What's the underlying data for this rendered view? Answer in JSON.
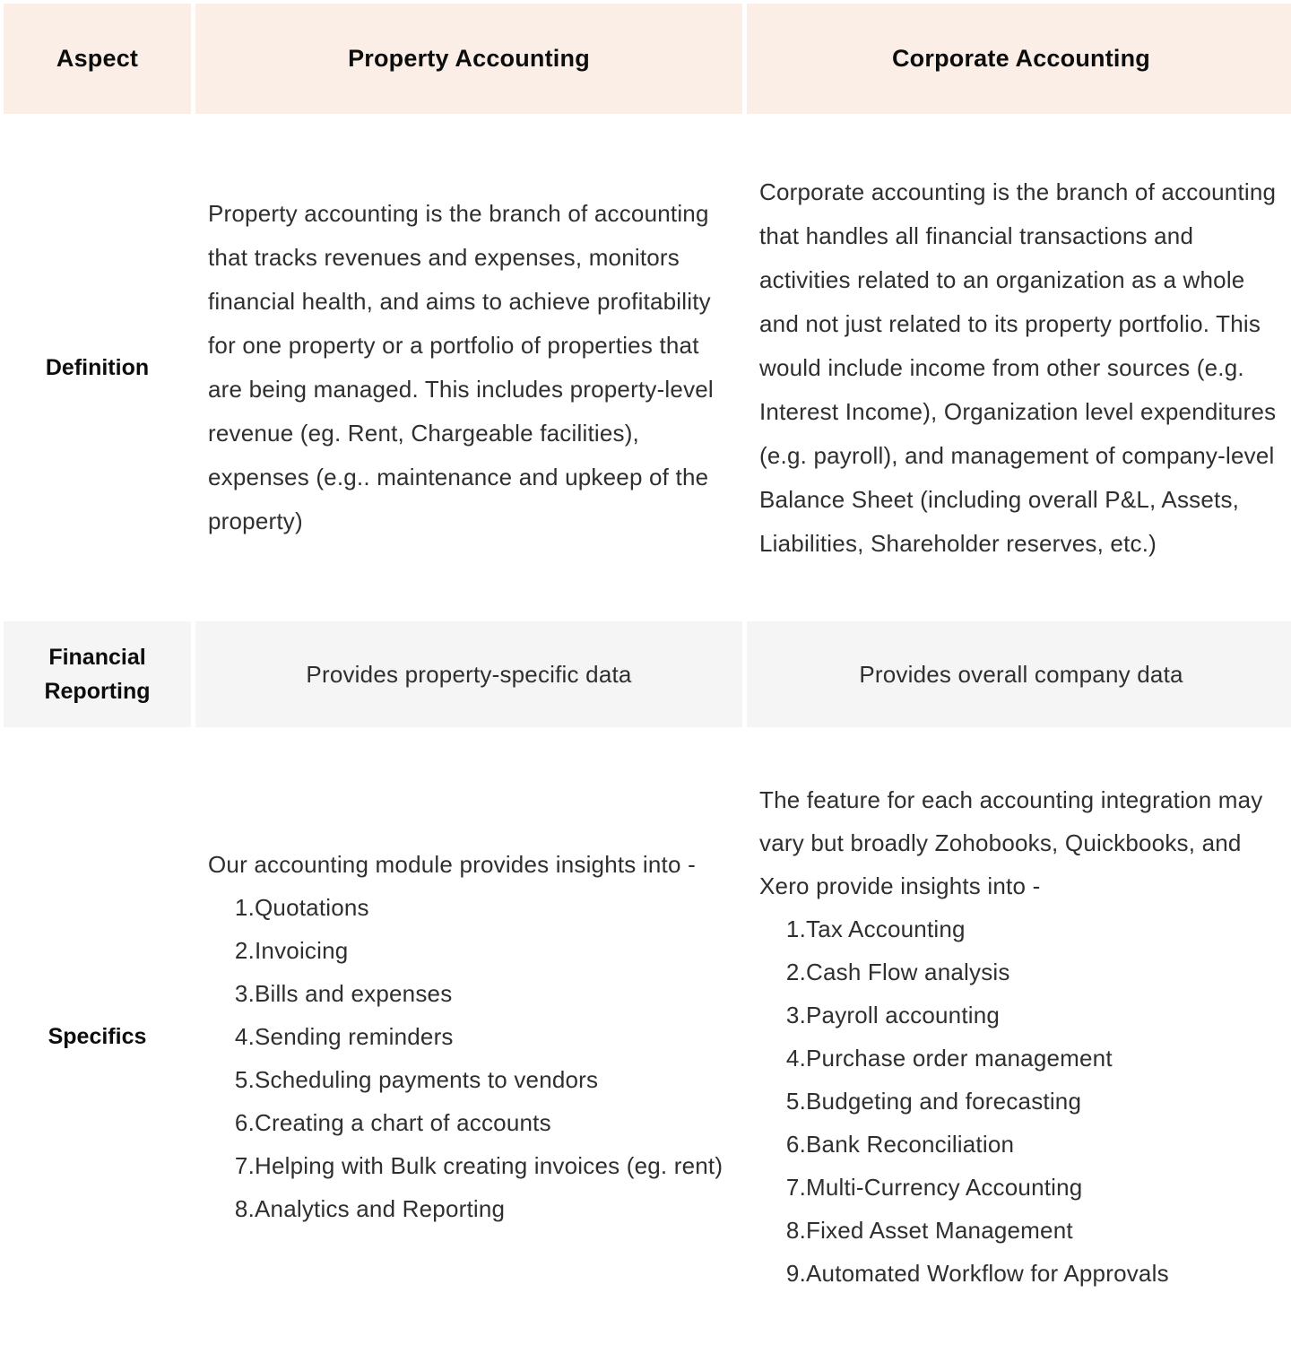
{
  "colors": {
    "header_bg": "#fbeee7",
    "alt_row_bg": "#f5f5f5",
    "body_text": "#2f2f2f",
    "heading_text": "#0d0d0d"
  },
  "header": {
    "aspect": "Aspect",
    "property": "Property Accounting",
    "corporate": "Corporate Accounting"
  },
  "definition": {
    "label": "Definition",
    "property": "Property accounting is the branch of accounting that tracks revenues and expenses, monitors financial health, and aims to achieve profitability for one property or a portfolio of properties that are being managed. This includes property-level revenue (eg. Rent, Chargeable facilities), expenses (e.g.. maintenance and upkeep of the property)",
    "corporate": "Corporate accounting is the branch of accounting that handles all financial transactions and activities related to an organization as a whole and not just related to its property portfolio. This would include income from other sources (e.g. Interest Income), Organization level expenditures (e.g. payroll), and management of company-level Balance Sheet (including overall P&L, Assets, Liabilities, Shareholder reserves, etc.)"
  },
  "financial_reporting": {
    "label": "Financial Reporting",
    "property": "Provides property-specific data",
    "corporate": "Provides overall company data"
  },
  "specifics": {
    "label": "Specifics",
    "property_intro": "Our accounting module provides insights into -",
    "property_items": [
      "Quotations",
      "Invoicing",
      "Bills and expenses",
      "Sending reminders",
      "Scheduling payments to vendors",
      "Creating a chart of accounts",
      "Helping with Bulk creating invoices (eg. rent)",
      "Analytics and Reporting"
    ],
    "corporate_intro": "The feature for each accounting integration may vary but broadly Zohobooks, Quickbooks, and Xero provide insights into -",
    "corporate_items": [
      "Tax Accounting",
      "Cash Flow analysis",
      "Payroll accounting",
      "Purchase order management",
      "Budgeting and forecasting",
      "Bank Reconciliation",
      "Multi-Currency Accounting",
      "Fixed Asset Management",
      "Automated Workflow for Approvals"
    ]
  }
}
